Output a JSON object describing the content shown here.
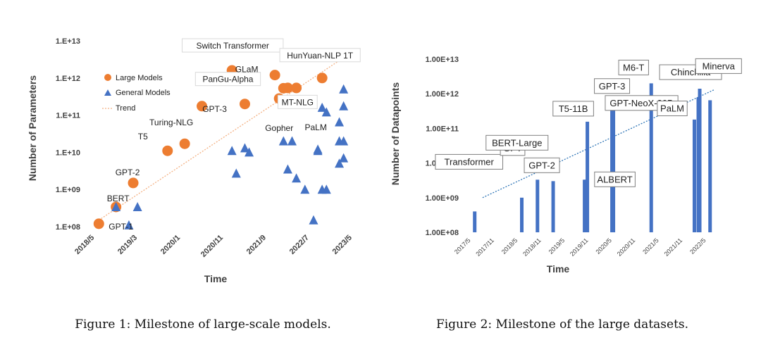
{
  "figures": [
    {
      "caption": "Figure 1: Milestone of large-scale models."
    },
    {
      "caption": "Figure 2: Milestone of the large datasets."
    }
  ],
  "colors": {
    "large": "#ED7D31",
    "general": "#4472C4",
    "trend1": "#F4B183",
    "trend2": "#2E75B6",
    "axis": "#404040"
  },
  "chart_data": [
    {
      "type": "scatter",
      "title": "",
      "xlabel": "Time",
      "ylabel": "Number of Parameters",
      "y_scale": "log",
      "ylim": [
        100000000.0,
        10000000000000.0
      ],
      "yticks": [
        "1.E+08",
        "1.E+09",
        "1.E+10",
        "1.E+11",
        "1.E+12",
        "1.E+13"
      ],
      "x_range": [
        "2018-03",
        "2023-07"
      ],
      "xticks": [
        {
          "label": "2018/5",
          "date": "2018-05"
        },
        {
          "label": "2019/3",
          "date": "2019-03"
        },
        {
          "label": "2020/1",
          "date": "2020-01"
        },
        {
          "label": "2020/11",
          "date": "2020-11"
        },
        {
          "label": "2021/9",
          "date": "2021-09"
        },
        {
          "label": "2022/7",
          "date": "2022-07"
        },
        {
          "label": "2023/5",
          "date": "2023-05"
        }
      ],
      "legend": [
        "Large Models",
        "General Models",
        "Trend"
      ],
      "legend_position": "upper-left",
      "series": [
        {
          "name": "Large Models",
          "marker": "circle",
          "points": [
            {
              "x": "2018-06",
              "y": 120000000.0,
              "label": "GPT-1"
            },
            {
              "x": "2018-10",
              "y": 340000000.0,
              "label": ""
            },
            {
              "x": "2019-02",
              "y": 1500000000.0,
              "label": "GPT-2"
            },
            {
              "x": "2019-10",
              "y": 11000000000.0,
              "label": "T5"
            },
            {
              "x": "2020-02",
              "y": 17000000000.0,
              "label": "Turing-NLG"
            },
            {
              "x": "2020-06",
              "y": 175000000000.0,
              "label": "GPT-3"
            },
            {
              "x": "2021-01",
              "y": 1600000000000.0,
              "label": "Switch Transformer"
            },
            {
              "x": "2021-04",
              "y": 200000000000.0,
              "label": "PanGu-Alpha"
            },
            {
              "x": "2021-11",
              "y": 1200000000000.0,
              "label": "GLaM"
            },
            {
              "x": "2021-12",
              "y": 280000000000.0,
              "label": "Gopher"
            },
            {
              "x": "2022-01",
              "y": 530000000000.0,
              "label": "MT-NLG"
            },
            {
              "x": "2022-02",
              "y": 540000000000.0,
              "label": ""
            },
            {
              "x": "2022-04",
              "y": 540000000000.0,
              "label": ""
            },
            {
              "x": "2022-10",
              "y": 1000000000000.0,
              "label": "HunYuan-NLP 1T"
            }
          ]
        },
        {
          "name": "General Models",
          "marker": "triangle",
          "points": [
            {
              "x": "2018-10",
              "y": 340000000.0,
              "label": "BERT"
            },
            {
              "x": "2019-01",
              "y": 110000000.0,
              "label": ""
            },
            {
              "x": "2019-03",
              "y": 340000000.0,
              "label": ""
            },
            {
              "x": "2021-01",
              "y": 11000000000.0,
              "label": ""
            },
            {
              "x": "2021-02",
              "y": 2700000000.0,
              "label": ""
            },
            {
              "x": "2021-04",
              "y": 13000000000.0,
              "label": ""
            },
            {
              "x": "2021-05",
              "y": 10000000000.0,
              "label": ""
            },
            {
              "x": "2022-01",
              "y": 20000000000.0,
              "label": ""
            },
            {
              "x": "2022-02",
              "y": 3500000000.0,
              "label": ""
            },
            {
              "x": "2022-03",
              "y": 20000000000.0,
              "label": ""
            },
            {
              "x": "2022-04",
              "y": 2000000000.0,
              "label": ""
            },
            {
              "x": "2022-06",
              "y": 1000000000.0,
              "label": ""
            },
            {
              "x": "2022-08",
              "y": 150000000.0,
              "label": ""
            },
            {
              "x": "2022-09",
              "y": 11000000000.0,
              "label": ""
            },
            {
              "x": "2022-09",
              "y": 12000000000.0,
              "label": ""
            },
            {
              "x": "2022-10",
              "y": 1000000000.0,
              "label": ""
            },
            {
              "x": "2022-11",
              "y": 1000000000.0,
              "label": ""
            },
            {
              "x": "2022-10",
              "y": 160000000000.0,
              "label": "PaLM"
            },
            {
              "x": "2022-11",
              "y": 120000000000.0,
              "label": ""
            },
            {
              "x": "2023-02",
              "y": 65000000000.0,
              "label": ""
            },
            {
              "x": "2023-02",
              "y": 20000000000.0,
              "label": ""
            },
            {
              "x": "2023-03",
              "y": 500000000000.0,
              "label": ""
            },
            {
              "x": "2023-03",
              "y": 175000000000.0,
              "label": ""
            },
            {
              "x": "2023-03",
              "y": 20000000000.0,
              "label": ""
            },
            {
              "x": "2023-03",
              "y": 7000000000.0,
              "label": ""
            },
            {
              "x": "2023-02",
              "y": 5000000000.0,
              "label": ""
            }
          ]
        },
        {
          "name": "Trend",
          "type": "line",
          "points": [
            {
              "x": "2018-06",
              "y": 150000000.0
            },
            {
              "x": "2023-05",
              "y": 5000000000000.0
            }
          ]
        }
      ]
    },
    {
      "type": "bar",
      "title": "",
      "xlabel": "Time",
      "ylabel": "Number of Datapoints",
      "y_scale": "log",
      "ylim": [
        100000000.0,
        10000000000000.0
      ],
      "yticks": [
        "1.00E+08",
        "1.00E+09",
        "1.00E+10",
        "1.00E+11",
        "1.00E+12",
        "1.00E+13"
      ],
      "x_range": [
        "2017-03",
        "2022-10"
      ],
      "xticks": [
        {
          "label": "2017/5",
          "date": "2017-05"
        },
        {
          "label": "2017/11",
          "date": "2017-11"
        },
        {
          "label": "2018/5",
          "date": "2018-05"
        },
        {
          "label": "2018/11",
          "date": "2018-11"
        },
        {
          "label": "2019/5",
          "date": "2019-05"
        },
        {
          "label": "2019/11",
          "date": "2019-11"
        },
        {
          "label": "2020/5",
          "date": "2020-05"
        },
        {
          "label": "2020/11",
          "date": "2020-11"
        },
        {
          "label": "2021/5",
          "date": "2021-05"
        },
        {
          "label": "2021/11",
          "date": "2021-11"
        },
        {
          "label": "2022/5",
          "date": "2022-05"
        }
      ],
      "bars": [
        {
          "x": "2017-06",
          "y": 400000000.0,
          "label": "Transformer"
        },
        {
          "x": "2018-06",
          "y": 1000000000.0,
          "label": "GPT"
        },
        {
          "x": "2018-10",
          "y": 3300000000.0,
          "label": "BERT-Large"
        },
        {
          "x": "2019-02",
          "y": 3000000000.0,
          "label": "GPT-2"
        },
        {
          "x": "2019-10",
          "y": 3300000000.0,
          "label": "ALBERT"
        },
        {
          "x": "2019-10",
          "y": 3300000000.0,
          "label": ""
        },
        {
          "x": "2019-10",
          "y": 156000000000.0,
          "label": "T5-11B"
        },
        {
          "x": "2020-05",
          "y": 400000000000.0,
          "label": "GPT-3"
        },
        {
          "x": "2020-05",
          "y": 400000000000.0,
          "label": "GPT-NeoX-20B"
        },
        {
          "x": "2021-03",
          "y": 2000000000000.0,
          "label": "M6-T"
        },
        {
          "x": "2022-02",
          "y": 180000000000.0,
          "label": ""
        },
        {
          "x": "2022-03",
          "y": 780000000000.0,
          "label": "PaLM"
        },
        {
          "x": "2022-03",
          "y": 1400000000000.0,
          "label": "Chinchilla"
        },
        {
          "x": "2022-06",
          "y": 650000000000.0,
          "label": "Minerva"
        }
      ],
      "trend": {
        "type": "line",
        "points": [
          {
            "x": "2017-08",
            "y": 1000000000.0
          },
          {
            "x": "2022-07",
            "y": 1300000000000.0
          }
        ]
      }
    }
  ]
}
